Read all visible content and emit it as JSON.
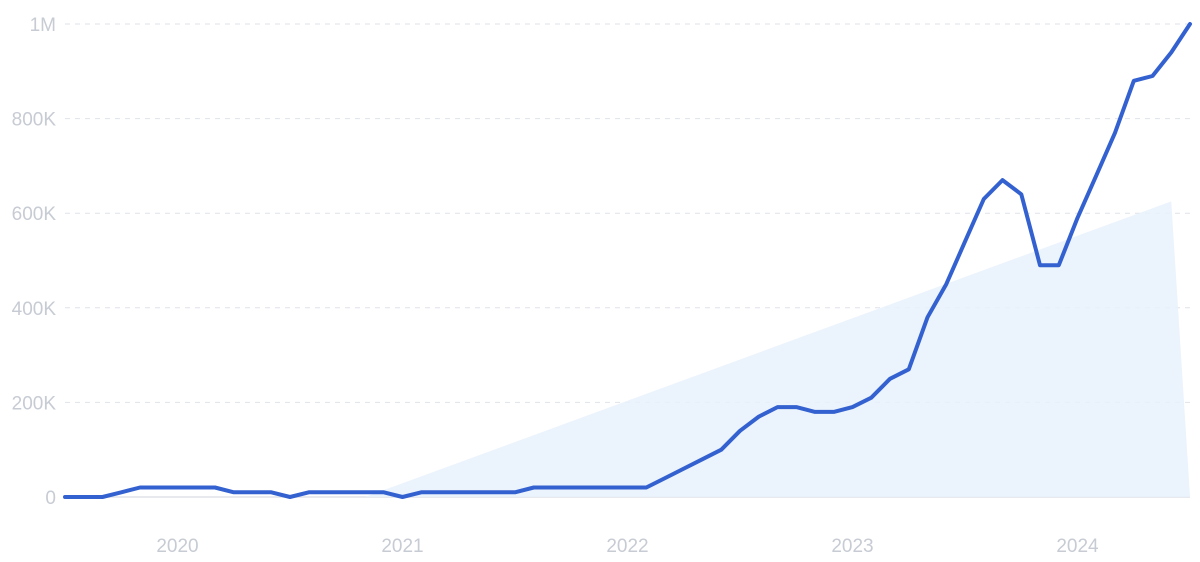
{
  "chart_data": {
    "type": "line",
    "title": "",
    "xlabel": "",
    "ylabel": "",
    "y_ticks": [
      "0",
      "200K",
      "400K",
      "600K",
      "800K",
      "1M"
    ],
    "y_tick_values": [
      0,
      200000,
      400000,
      600000,
      800000,
      1000000
    ],
    "x_ticks": [
      "2020",
      "2021",
      "2022",
      "2023",
      "2024"
    ],
    "x_tick_values": [
      "2020-01",
      "2021-01",
      "2022-01",
      "2023-01",
      "2024-01"
    ],
    "ylim": [
      0,
      1000000
    ],
    "xlim": [
      "2019-07",
      "2024-06"
    ],
    "grid": true,
    "line_color": "#3461d0",
    "trend_fill_color": "#e7f1fc",
    "trend_line": {
      "start": [
        "2020-11",
        0
      ],
      "end": [
        "2024-06",
        625000
      ]
    },
    "series": [
      {
        "points": [
          [
            "2019-07",
            0
          ],
          [
            "2019-08",
            0
          ],
          [
            "2019-09",
            0
          ],
          [
            "2019-10",
            10000
          ],
          [
            "2019-11",
            20000
          ],
          [
            "2019-12",
            20000
          ],
          [
            "2020-01",
            20000
          ],
          [
            "2020-02",
            20000
          ],
          [
            "2020-03",
            20000
          ],
          [
            "2020-04",
            10000
          ],
          [
            "2020-05",
            10000
          ],
          [
            "2020-06",
            10000
          ],
          [
            "2020-07",
            0
          ],
          [
            "2020-08",
            10000
          ],
          [
            "2020-09",
            10000
          ],
          [
            "2020-10",
            10000
          ],
          [
            "2020-11",
            10000
          ],
          [
            "2020-12",
            10000
          ],
          [
            "2021-01",
            0
          ],
          [
            "2021-02",
            10000
          ],
          [
            "2021-03",
            10000
          ],
          [
            "2021-04",
            10000
          ],
          [
            "2021-05",
            10000
          ],
          [
            "2021-06",
            10000
          ],
          [
            "2021-07",
            10000
          ],
          [
            "2021-08",
            20000
          ],
          [
            "2021-09",
            20000
          ],
          [
            "2021-10",
            20000
          ],
          [
            "2021-11",
            20000
          ],
          [
            "2021-12",
            20000
          ],
          [
            "2022-01",
            20000
          ],
          [
            "2022-02",
            20000
          ],
          [
            "2022-03",
            40000
          ],
          [
            "2022-04",
            60000
          ],
          [
            "2022-05",
            80000
          ],
          [
            "2022-06",
            100000
          ],
          [
            "2022-07",
            140000
          ],
          [
            "2022-08",
            170000
          ],
          [
            "2022-09",
            190000
          ],
          [
            "2022-10",
            190000
          ],
          [
            "2022-11",
            180000
          ],
          [
            "2022-12",
            180000
          ],
          [
            "2023-01",
            190000
          ],
          [
            "2023-02",
            210000
          ],
          [
            "2023-03",
            250000
          ],
          [
            "2023-04",
            270000
          ],
          [
            "2023-05",
            380000
          ],
          [
            "2023-06",
            450000
          ],
          [
            "2023-07",
            540000
          ],
          [
            "2023-08",
            630000
          ],
          [
            "2023-09",
            670000
          ],
          [
            "2023-10",
            640000
          ],
          [
            "2023-11",
            490000
          ],
          [
            "2023-12",
            490000
          ],
          [
            "2024-01",
            590000
          ],
          [
            "2024-02",
            680000
          ],
          [
            "2024-03",
            770000
          ],
          [
            "2024-04",
            880000
          ],
          [
            "2024-05",
            890000
          ],
          [
            "2024-06",
            940000
          ],
          [
            "2024-07",
            1000000
          ]
        ]
      }
    ]
  }
}
